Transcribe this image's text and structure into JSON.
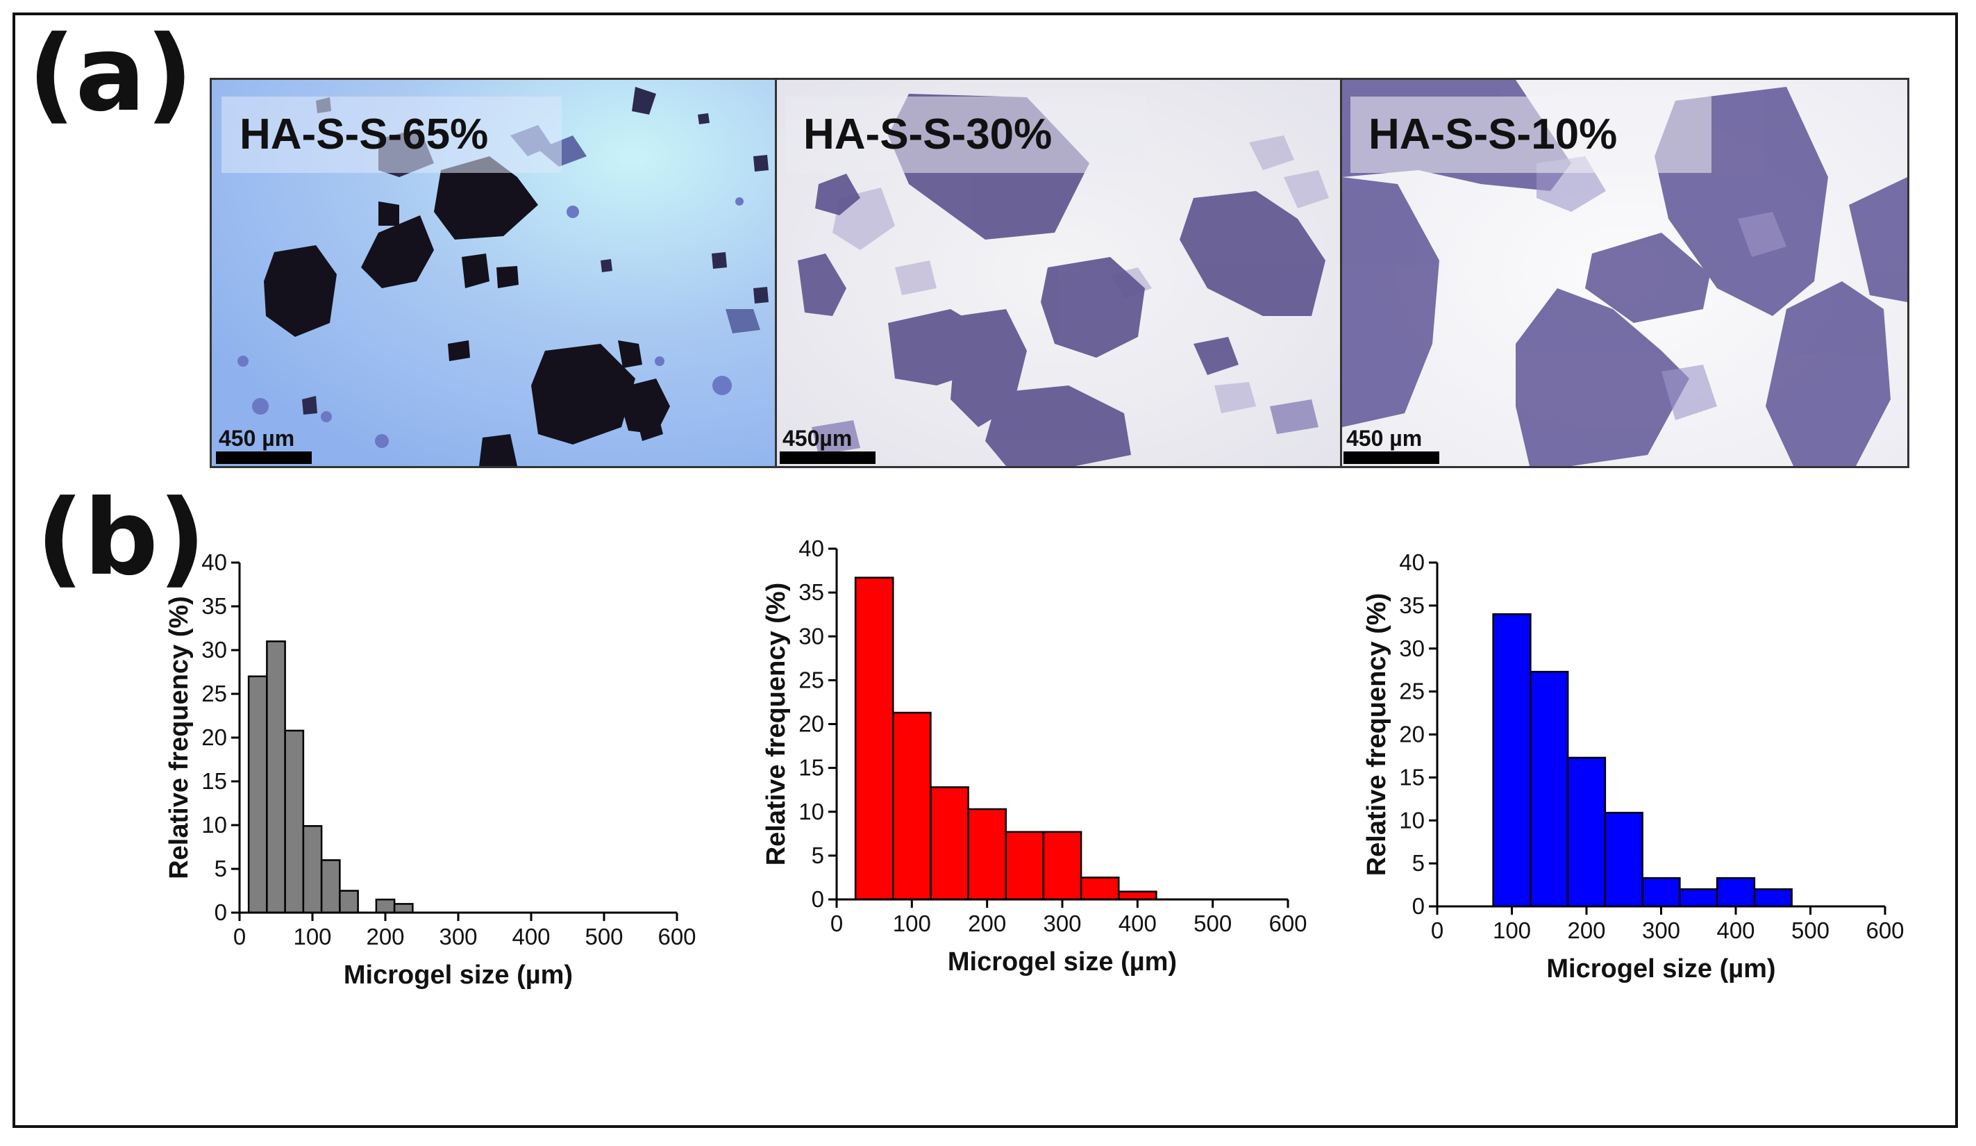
{
  "panel_a": {
    "label": "(a)",
    "images": [
      {
        "label": "HA-S-S-65%",
        "scale_text": "450 µm",
        "background": "#b9d4f6",
        "particle_color": "#15121f"
      },
      {
        "label": "HA-S-S-30%",
        "scale_text": "450µm",
        "background": "#eeeef2",
        "particle_color": "#5d548f"
      },
      {
        "label": "HA-S-S-10%",
        "scale_text": "450 µm",
        "background": "#f3f3f6",
        "particle_color": "#5e5598"
      }
    ]
  },
  "panel_b": {
    "label": "(b)"
  },
  "chart_data": [
    {
      "type": "bar",
      "color": "#7f7f7f",
      "xlabel": "Microgel size (µm)",
      "ylabel": "Relative frequency (%)",
      "xlim": [
        0,
        600
      ],
      "ylim": [
        0,
        40
      ],
      "xticks": [
        0,
        100,
        200,
        300,
        400,
        500,
        600
      ],
      "yticks": [
        0,
        5,
        10,
        15,
        20,
        25,
        30,
        35,
        40
      ],
      "bin_width": 25,
      "x": [
        25,
        50,
        75,
        100,
        125,
        150,
        175,
        200,
        225
      ],
      "values": [
        27,
        31,
        20.8,
        9.9,
        6,
        2.5,
        0,
        1.5,
        1
      ]
    },
    {
      "type": "bar",
      "color": "#ff0000",
      "xlabel": "Microgel size (µm)",
      "ylabel": "Relative frequency (%)",
      "xlim": [
        0,
        600
      ],
      "ylim": [
        0,
        40
      ],
      "xticks": [
        0,
        100,
        200,
        300,
        400,
        500,
        600
      ],
      "yticks": [
        0,
        5,
        10,
        15,
        20,
        25,
        30,
        35,
        40
      ],
      "bin_width": 50,
      "x": [
        50,
        100,
        150,
        200,
        250,
        300,
        350,
        400
      ],
      "values": [
        36.7,
        21.3,
        12.8,
        10.3,
        7.7,
        7.7,
        2.5,
        0.9
      ]
    },
    {
      "type": "bar",
      "color": "#0000ff",
      "xlabel": "Microgel size (µm)",
      "ylabel": "Relative frequency (%)",
      "xlim": [
        0,
        600
      ],
      "ylim": [
        0,
        40
      ],
      "xticks": [
        0,
        100,
        200,
        300,
        400,
        500,
        600
      ],
      "yticks": [
        0,
        5,
        10,
        15,
        20,
        25,
        30,
        35,
        40
      ],
      "bin_width": 50,
      "x": [
        100,
        150,
        200,
        250,
        300,
        350,
        400,
        450
      ],
      "values": [
        34,
        27.3,
        17.3,
        10.9,
        3.3,
        2,
        3.3,
        2
      ]
    }
  ]
}
